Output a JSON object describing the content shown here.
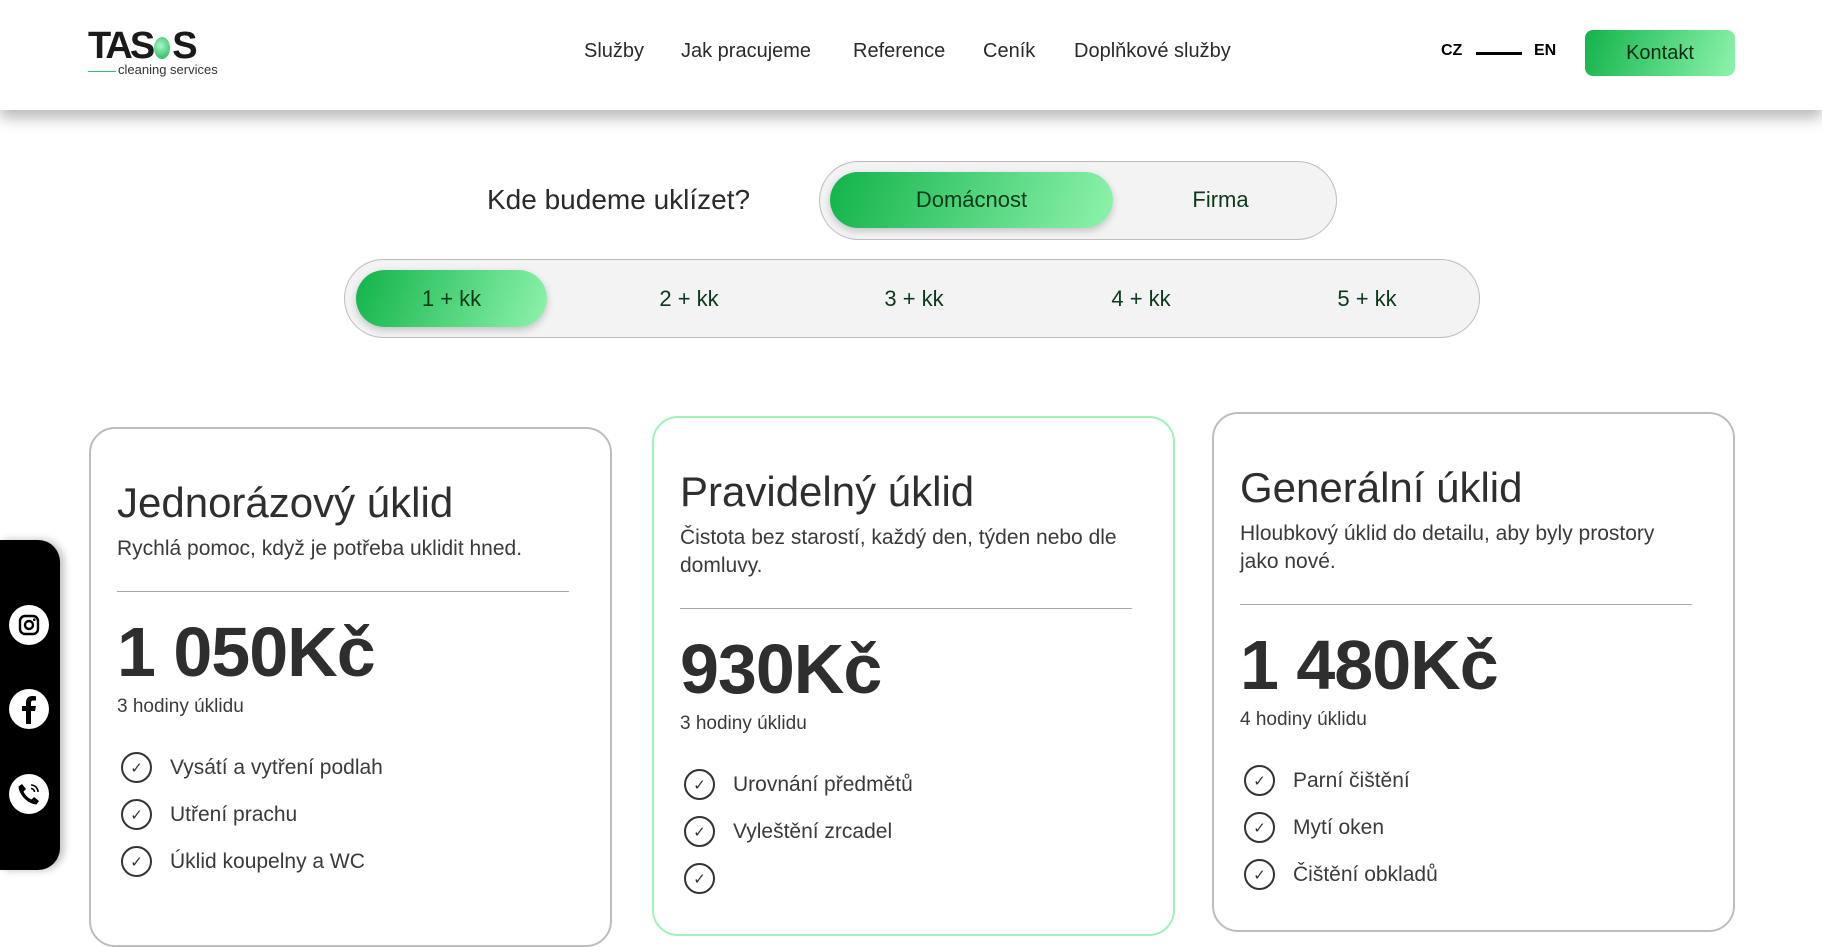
{
  "header": {
    "logo_text": "TASOS",
    "logo_tagline": "cleaning services",
    "nav": [
      "Služby",
      "Jak pracujeme",
      "Reference",
      "Ceník",
      "Doplňkové služby"
    ],
    "lang": {
      "cz": "CZ",
      "en": "EN"
    },
    "contact_label": "Kontakt"
  },
  "colors": {
    "accent_start": "#12b34a",
    "accent_end": "#8ef3ac",
    "featured_border": "#9ef2b8"
  },
  "selector": {
    "question": "Kde budeme uklízet?",
    "place_options": [
      "Domácnost",
      "Firma"
    ],
    "place_selected": "Domácnost",
    "room_options": [
      "1 + kk",
      "2 + kk",
      "3 + kk",
      "4 + kk",
      "5 + kk"
    ],
    "room_selected": "1 + kk"
  },
  "cards": [
    {
      "title": "Jednorázový úklid",
      "subtitle": "Rychlá pomoc, když je potřeba uklidit hned.",
      "price": "1 050Kč",
      "hours": "3 hodiny úklidu",
      "items": [
        "Vysátí a vytření podlah",
        "Utření prachu",
        "Úklid koupelny a WC"
      ]
    },
    {
      "title": "Pravidelný úklid",
      "subtitle": "Čistota bez starostí, každý den, týden nebo dle domluvy.",
      "price": "930Kč",
      "hours": "3 hodiny úklidu",
      "items": [
        "Urovnání předmětů",
        "Vyleštění zrcadel",
        ""
      ]
    },
    {
      "title": "Generální úklid",
      "subtitle": "Hloubkový úklid do detailu, aby byly prostory jako nové.",
      "price": "1 480Kč",
      "hours": "4 hodiny úklidu",
      "items": [
        "Parní čištění",
        "Mytí oken",
        "Čištění obkladů"
      ]
    }
  ],
  "social": [
    "instagram-icon",
    "facebook-icon",
    "phone-icon"
  ]
}
